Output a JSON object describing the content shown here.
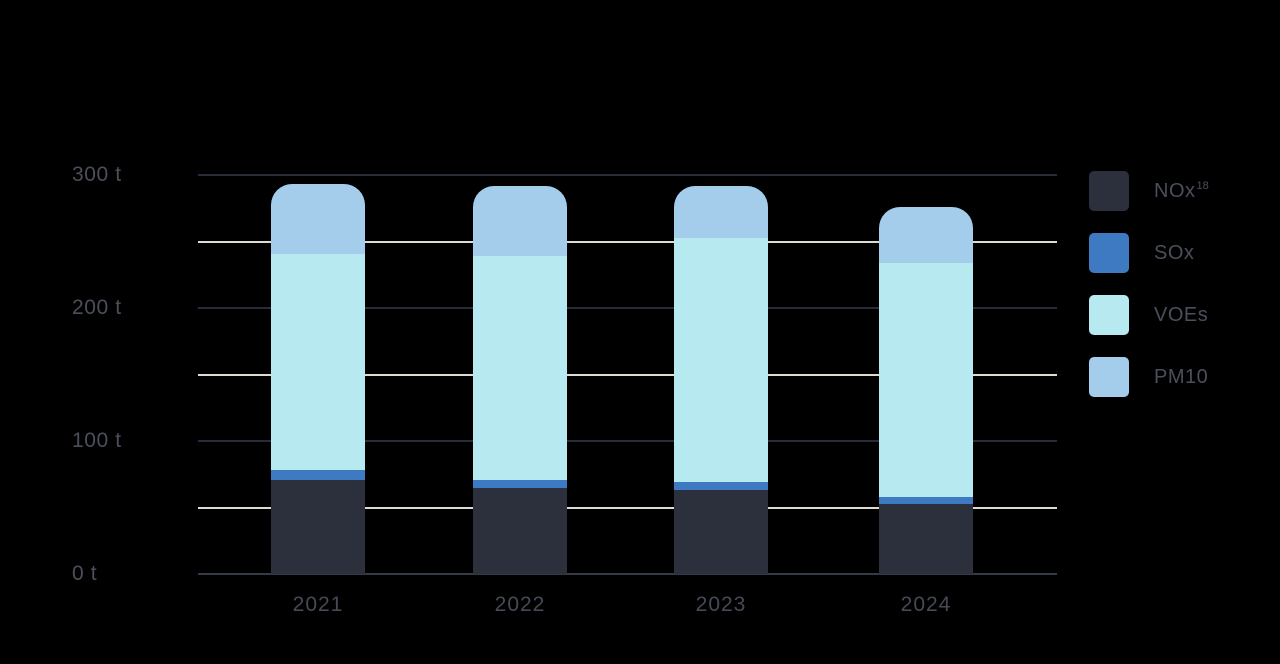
{
  "page": {
    "background_color": "#000000",
    "title": ""
  },
  "chart_data": {
    "type": "bar",
    "variant": "stacked-vertical-rounded-top",
    "title": "",
    "xlabel": "",
    "ylabel": "",
    "unit": "t",
    "categories": [
      "2021",
      "2022",
      "2023",
      "2024"
    ],
    "series": [
      {
        "name": "NOx",
        "sup": "18",
        "color": "#2B303C",
        "values": [
          71,
          65,
          63,
          53
        ]
      },
      {
        "name": "SOx",
        "sup": "",
        "color": "#3E7AC1",
        "values": [
          7,
          6,
          6,
          5
        ]
      },
      {
        "name": "VOEs",
        "sup": "",
        "color": "#B7E9F1",
        "values": [
          163,
          168,
          184,
          176
        ]
      },
      {
        "name": "PM10",
        "sup": "",
        "color": "#A4CDEC",
        "values": [
          52,
          53,
          39,
          42
        ]
      }
    ],
    "stack_totals": [
      293,
      292,
      292,
      276
    ],
    "ylim": [
      0,
      300
    ],
    "y_ticks": [
      {
        "value": 0,
        "label": "0 t"
      },
      {
        "value": 100,
        "label": "100 t"
      },
      {
        "value": 200,
        "label": "200 t"
      },
      {
        "value": 300,
        "label": "300 t"
      }
    ],
    "grid": {
      "on": true,
      "step": 50,
      "major_every": 100,
      "major_color": "#272C38",
      "minor_color": "#DEDBD2",
      "zero_color": "#343A46"
    },
    "axis_label_color": "#4A4F5B",
    "legend_position": "right"
  }
}
